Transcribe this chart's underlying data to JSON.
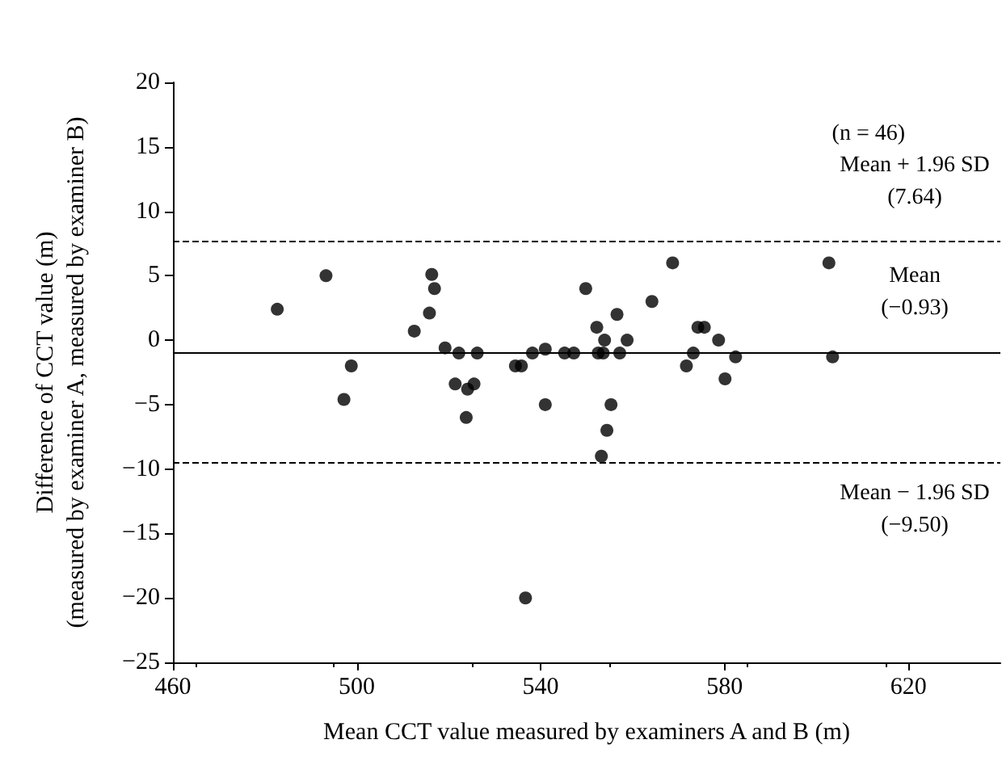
{
  "chart_data": {
    "type": "scatter",
    "xlabel": "Mean CCT value measured by examiners A and B (m)",
    "ylabel": "Difference of CCT value (m)\n(measured by examiner A, measured by examiner B)",
    "x": [
      482.7,
      493.3,
      497.2,
      498.8,
      512.5,
      516.3,
      516.9,
      515.8,
      519.2,
      522.2,
      521.4,
      524.1,
      525.5,
      523.8,
      526.2,
      534.5,
      535.8,
      538.2,
      541.0,
      541.0,
      545.2,
      547.2,
      549.8,
      552.2,
      552.5,
      553.6,
      553.9,
      555.3,
      554.4,
      553.2,
      556.6,
      557.2,
      558.8,
      564.2,
      568.7,
      571.7,
      573.2,
      574.2,
      575.6,
      578.7,
      580.1,
      582.4,
      602.7,
      603.5,
      536.7
    ],
    "values": [
      2.4,
      5.0,
      -4.6,
      -2.0,
      0.7,
      5.1,
      4.0,
      2.1,
      -0.6,
      -1.0,
      -3.4,
      -3.8,
      -3.4,
      -6.0,
      -1.0,
      -2.0,
      -2.0,
      -1.0,
      -0.7,
      -5.0,
      -1.0,
      -1.0,
      4.0,
      1.0,
      -1.0,
      -1.0,
      0.0,
      -5.0,
      -7.0,
      -9.0,
      2.0,
      -1.0,
      0.0,
      3.0,
      6.0,
      -2.0,
      -1.0,
      1.0,
      1.0,
      0.0,
      -3.0,
      -1.3,
      6.0,
      -1.3,
      -20.0
    ],
    "color": "#000000",
    "marker": "circle",
    "xlim": [
      460,
      640
    ],
    "xticks": [
      460,
      500,
      540,
      580,
      620
    ],
    "ylim": [
      -25,
      20
    ],
    "yticks": [
      -25,
      -20,
      -15,
      -10,
      -5,
      0,
      5,
      10,
      15,
      20
    ],
    "grid": false,
    "ref_lines": [
      {
        "axis": "y",
        "value": 7.64,
        "label": "Mean + 1.96 SD\n(7.64)",
        "line_style": "dashed",
        "color": "#000000"
      },
      {
        "axis": "y",
        "value": -0.93,
        "label": "Mean\n(−0.93)",
        "line_style": "solid",
        "color": "#000000"
      },
      {
        "axis": "y",
        "value": -9.5,
        "label": "Mean − 1.96 SD\n(−9.50)",
        "line_style": "dashed",
        "color": "#000000"
      }
    ],
    "annotations": [
      "(n = 46)"
    ]
  }
}
